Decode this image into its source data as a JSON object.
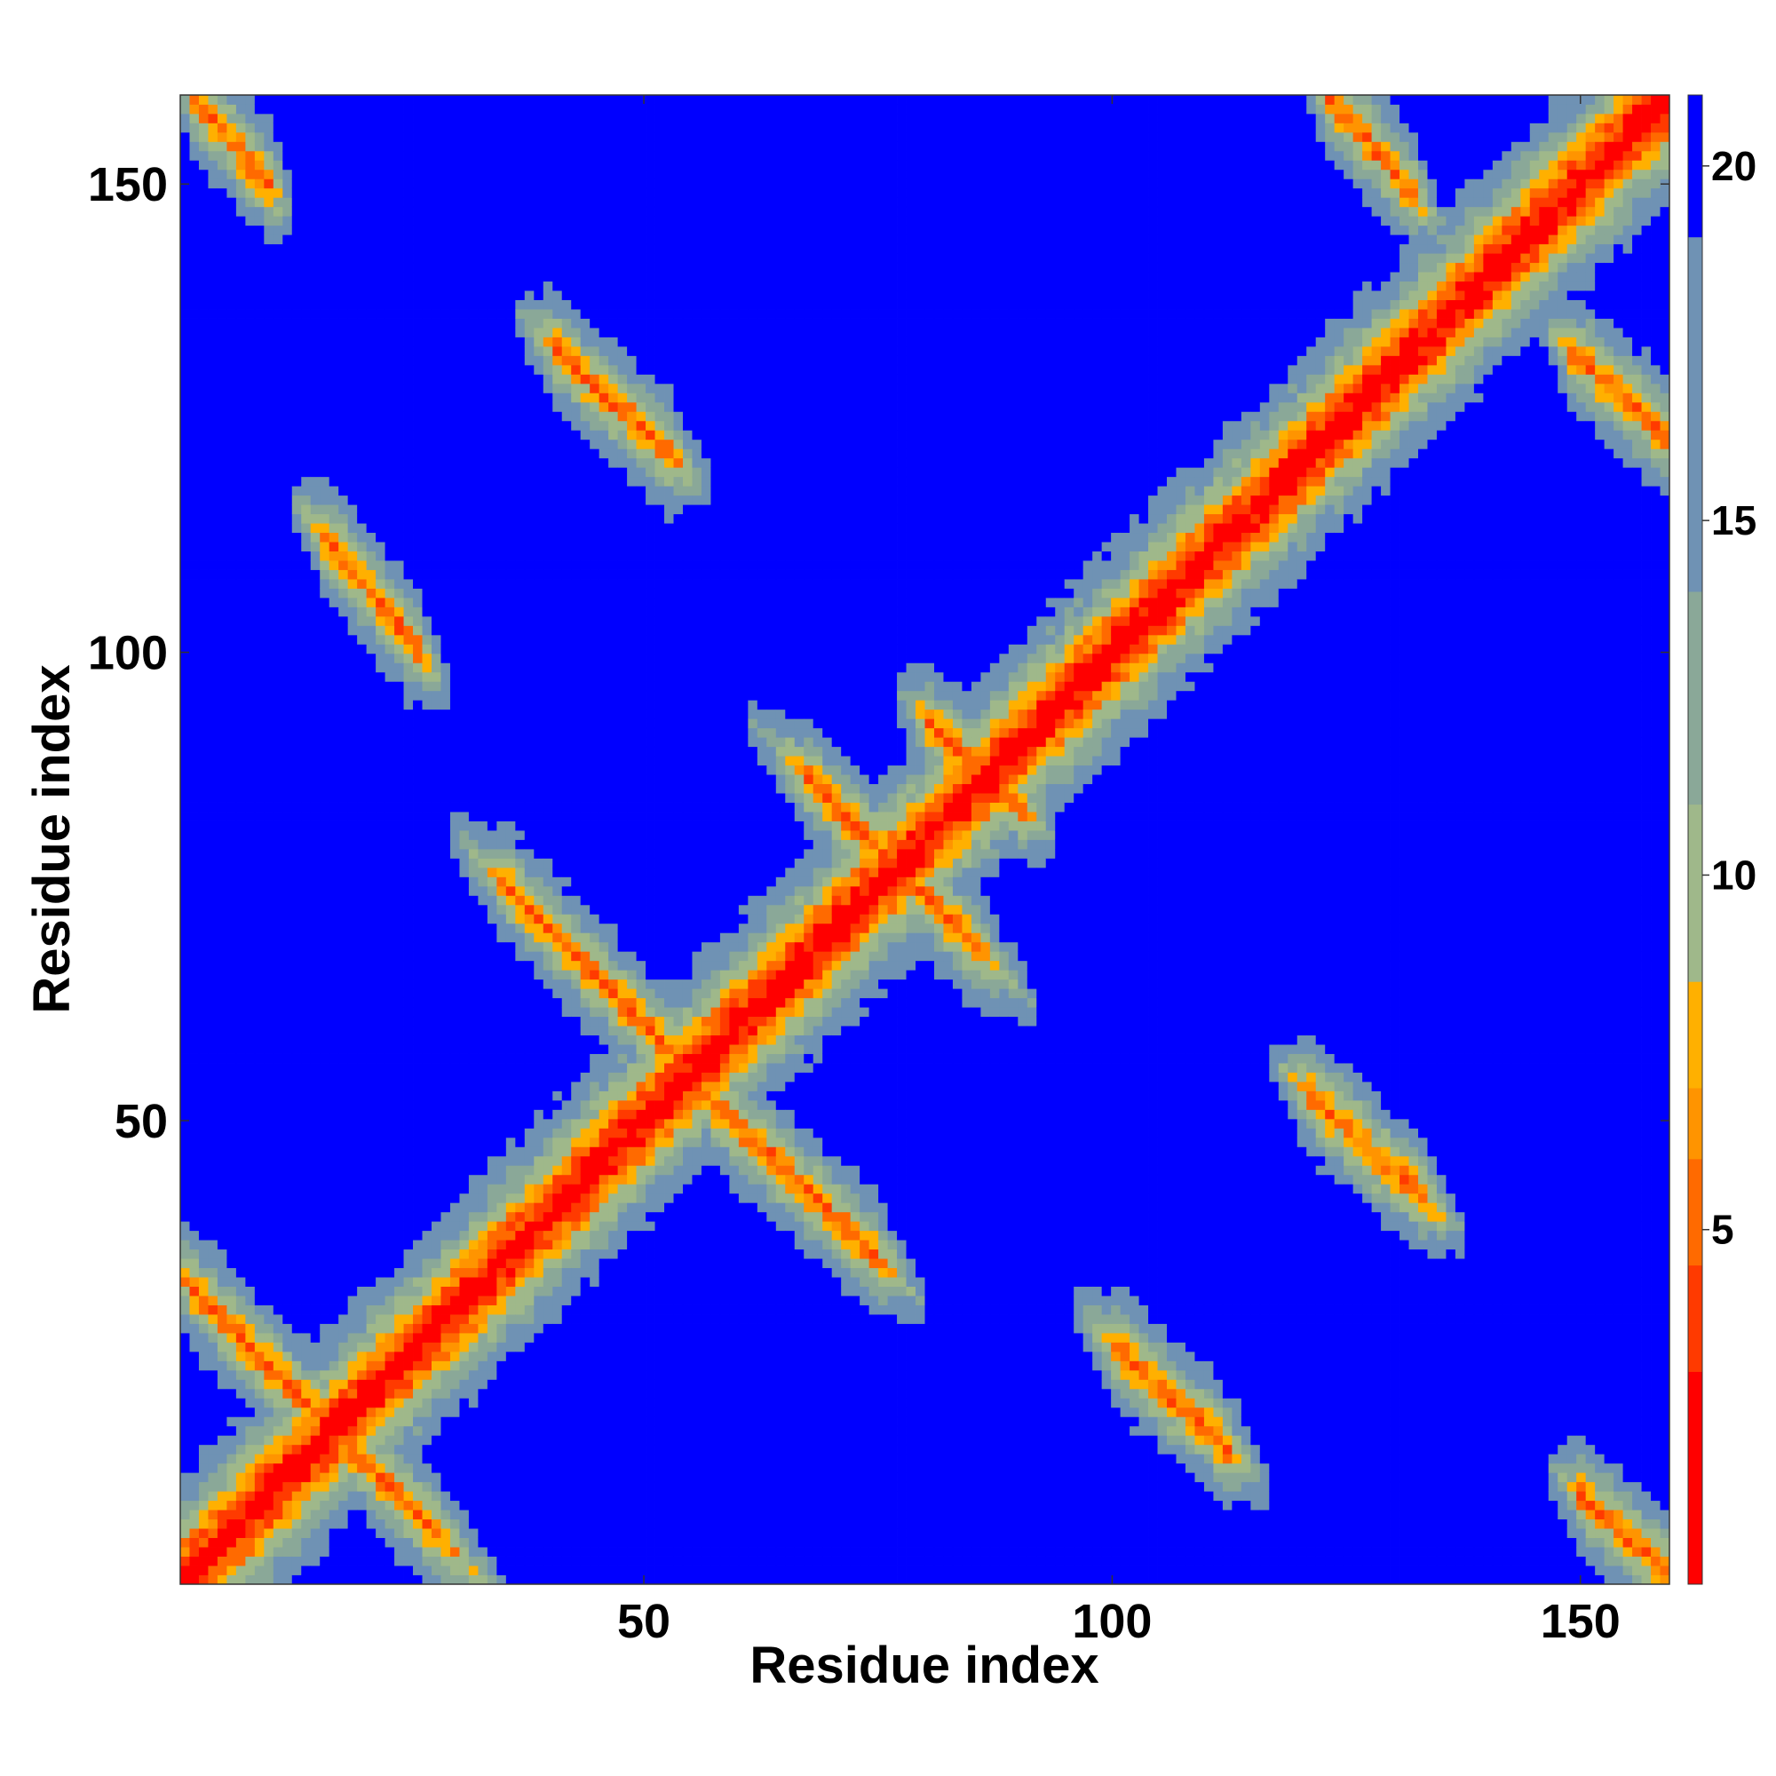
{
  "chart_data": {
    "type": "heatmap",
    "title": "",
    "xlabel": "Residue index",
    "ylabel": "Residue index",
    "xlim": [
      1,
      160
    ],
    "ylim": [
      1,
      160
    ],
    "x_ticks": [
      50,
      100,
      150
    ],
    "y_ticks": [
      50,
      100,
      150
    ],
    "value_range": [
      0,
      21
    ],
    "n_residues": 160,
    "colorbar": {
      "ticks": [
        5,
        10,
        15,
        20
      ],
      "position": "right",
      "colors": [
        "#ff0000",
        "#ff3a00",
        "#ff6a00",
        "#ff9400",
        "#ffb000",
        "#9fb88a",
        "#8aa898",
        "#6f92b4",
        "#0000ff"
      ],
      "boundaries": [
        0,
        3,
        4.5,
        6,
        7,
        8.5,
        11,
        14,
        19,
        21
      ]
    },
    "secondary_structure_contacts": [
      {
        "kind": "diagonal",
        "from": 1,
        "to": 160
      },
      {
        "kind": "anti-parallel",
        "i_range": [
          2,
          28
        ],
        "j_range": [
          32,
          6
        ]
      },
      {
        "kind": "anti-parallel",
        "i_range": [
          36,
          54
        ],
        "j_range": [
          75,
          57
        ]
      },
      {
        "kind": "anti-parallel",
        "i_range": [
          58,
          75
        ],
        "j_range": [
          52,
          36
        ]
      },
      {
        "kind": "anti-parallel",
        "i_range": [
          68,
          86
        ],
        "j_range": [
          87,
          69
        ]
      },
      {
        "kind": "anti-parallel",
        "i_range": [
          81,
          91
        ],
        "j_range": [
          93,
          84
        ]
      },
      {
        "kind": "anti-parallel",
        "i_range": [
          16,
          26
        ],
        "j_range": [
          113,
          101
        ]
      },
      {
        "kind": "anti-parallel",
        "i_range": [
          41,
          53
        ],
        "j_range": [
          133,
          122
        ]
      },
      {
        "kind": "anti-parallel",
        "i_range": [
          101,
          113
        ],
        "j_range": [
          26,
          15
        ]
      },
      {
        "kind": "anti-parallel",
        "i_range": [
          122,
          134
        ],
        "j_range": [
          53,
          42
        ]
      },
      {
        "kind": "anti-parallel",
        "i_range": [
          124,
          133
        ],
        "j_range": [
          160,
          150
        ]
      },
      {
        "kind": "anti-parallel",
        "i_range": [
          150,
          160
        ],
        "j_range": [
          133,
          124
        ]
      },
      {
        "kind": "anti-parallel",
        "i_range": [
          2,
          10
        ],
        "j_range": [
          160,
          151
        ]
      },
      {
        "kind": "anti-parallel",
        "i_range": [
          151,
          160
        ],
        "j_range": [
          10,
          2
        ]
      }
    ]
  }
}
